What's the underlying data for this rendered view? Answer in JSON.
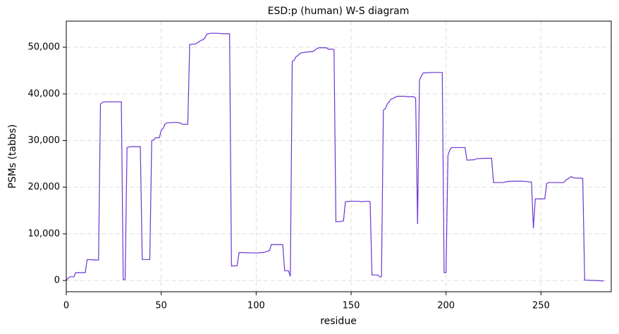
{
  "chart_data": {
    "type": "line",
    "title": "ESD:p (human) W-S diagram",
    "xlabel": "residue",
    "ylabel": "PSMs (tabbs)",
    "x": [
      0,
      1,
      2,
      4,
      5,
      10,
      11,
      16,
      17,
      18,
      19,
      21,
      29,
      30,
      31,
      32,
      34,
      39,
      40,
      44,
      45,
      46,
      47,
      49,
      50,
      51,
      52,
      53,
      58,
      60,
      61,
      64,
      65,
      68,
      70,
      71,
      72,
      73,
      74,
      76,
      80,
      82,
      86,
      87,
      90,
      91,
      100,
      104,
      106,
      107,
      108,
      114,
      115,
      117,
      118,
      119,
      120,
      121,
      122,
      123,
      125,
      130,
      132,
      133,
      137,
      138,
      140,
      141,
      142,
      144,
      146,
      147,
      150,
      154,
      155,
      159,
      160,
      161,
      164,
      165,
      166,
      167,
      168,
      169,
      170,
      171,
      173,
      174,
      178,
      180,
      183,
      184,
      185,
      186,
      187,
      188,
      193,
      198,
      199,
      200,
      201,
      202,
      203,
      210,
      211,
      215,
      216,
      220,
      224,
      225,
      230,
      232,
      235,
      240,
      245,
      246,
      247,
      252,
      253,
      254,
      262,
      263,
      265,
      266,
      267,
      272,
      273,
      279,
      283
    ],
    "series": [
      {
        "name": "PSMs",
        "color": "#6a35d4",
        "values": [
          0,
          500,
          800,
          800,
          1700,
          1700,
          4500,
          4400,
          4400,
          37800,
          38200,
          38300,
          38300,
          200,
          200,
          28500,
          28700,
          28700,
          4500,
          4500,
          30000,
          30100,
          30600,
          30600,
          32200,
          32600,
          33500,
          33800,
          33900,
          33800,
          33500,
          33500,
          50600,
          50700,
          51200,
          51500,
          51600,
          52000,
          52800,
          53000,
          53000,
          52900,
          52900,
          3100,
          3200,
          6000,
          5900,
          6000,
          6300,
          6400,
          7700,
          7700,
          2100,
          2100,
          900,
          47000,
          47200,
          48000,
          48200,
          48700,
          48900,
          49100,
          49700,
          49900,
          49900,
          49600,
          49600,
          49500,
          12600,
          12600,
          12800,
          16900,
          17000,
          17000,
          16900,
          17000,
          16900,
          1200,
          1200,
          800,
          800,
          36500,
          36800,
          37800,
          38300,
          38900,
          39200,
          39500,
          39500,
          39400,
          39400,
          39100,
          12100,
          43000,
          43800,
          44500,
          44600,
          44600,
          1700,
          1700,
          26800,
          28000,
          28500,
          28500,
          25800,
          25900,
          26100,
          26200,
          26200,
          21000,
          21000,
          21200,
          21300,
          21300,
          21100,
          11200,
          17500,
          17500,
          20800,
          21000,
          21000,
          21500,
          22000,
          22300,
          22000,
          21900,
          100,
          0,
          -100
        ]
      }
    ],
    "xlim": [
      0,
      287
    ],
    "ylim": [
      -2400,
      55600
    ],
    "xticks": [
      0,
      50,
      100,
      150,
      200,
      250
    ],
    "yticks": [
      0,
      {
        "value": 10000,
        "label": "10,000"
      },
      {
        "value": 20000,
        "label": "20,000"
      },
      {
        "value": 30000,
        "label": "30,000"
      },
      {
        "value": 40000,
        "label": "40,000"
      },
      {
        "value": 50000,
        "label": "50,000"
      }
    ],
    "grid": true
  }
}
